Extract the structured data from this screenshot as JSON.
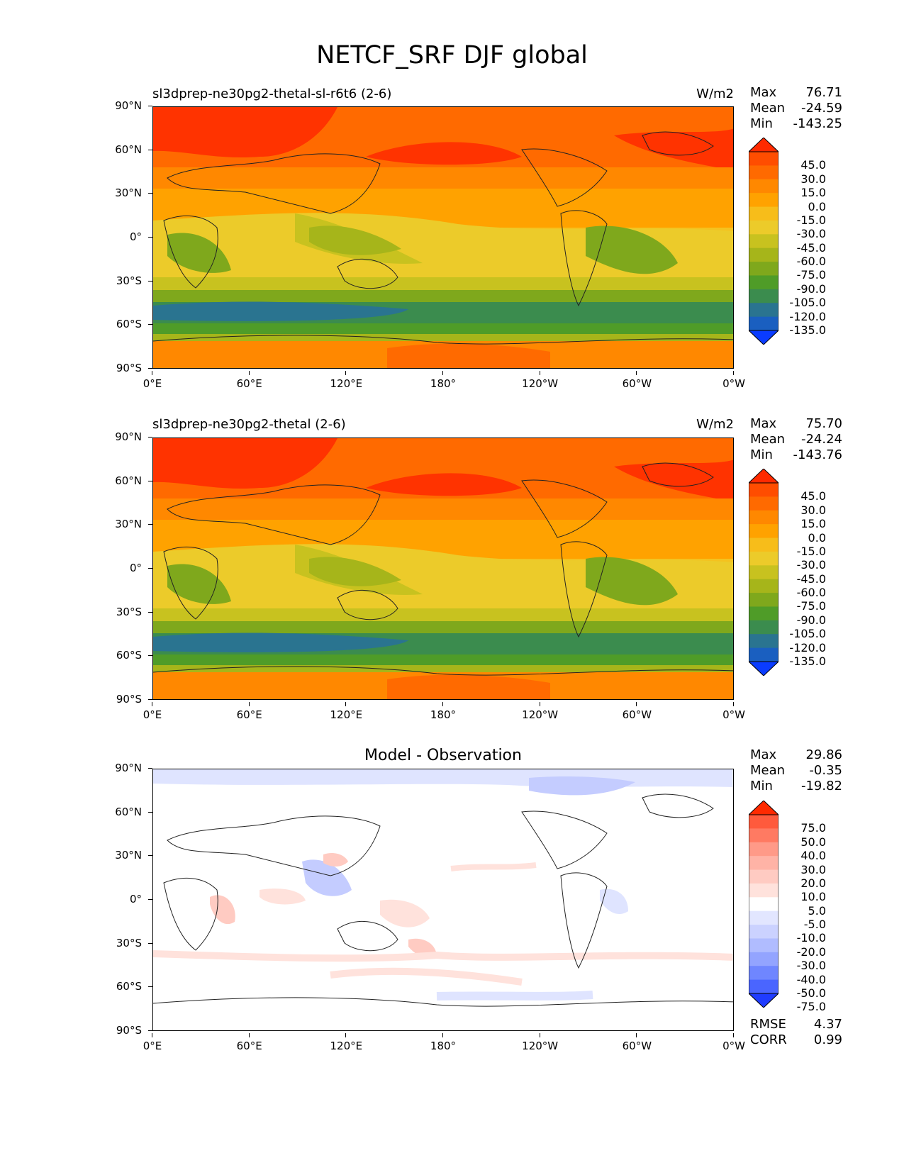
{
  "figure": {
    "title": "NETCF_SRF DJF global"
  },
  "axes": {
    "yticks": [
      "90°N",
      "60°N",
      "30°N",
      "0°",
      "30°S",
      "60°S",
      "90°S"
    ],
    "xticks": [
      "0°E",
      "60°E",
      "120°E",
      "180°",
      "120°W",
      "60°W",
      "0°W"
    ]
  },
  "panels": [
    {
      "title": "sl3dprep-ne30pg2-thetal-sl-r6t6 (2-6)",
      "units": "W/m2",
      "stats": {
        "max_label": "Max",
        "max": "76.71",
        "mean_label": "Mean",
        "mean": "-24.59",
        "min_label": "Min",
        "min": "-143.25"
      }
    },
    {
      "title": "sl3dprep-ne30pg2-thetal (2-6)",
      "units": "W/m2",
      "stats": {
        "max_label": "Max",
        "max": "75.70",
        "mean_label": "Mean",
        "mean": "-24.24",
        "min_label": "Min",
        "min": "-143.76"
      }
    },
    {
      "title": "Model - Observation",
      "units": "",
      "stats": {
        "max_label": "Max",
        "max": "29.86",
        "mean_label": "Mean",
        "mean": "-0.35",
        "min_label": "Min",
        "min": "-19.82"
      },
      "metrics": {
        "rmse_label": "RMSE",
        "rmse": "4.37",
        "corr_label": "CORR",
        "corr": "0.99"
      }
    }
  ],
  "colorbars": {
    "field": {
      "labels": [
        "45.0",
        "30.0",
        "15.0",
        "0.0",
        "-15.0",
        "-30.0",
        "-45.0",
        "-60.0",
        "-75.0",
        "-90.0",
        "-105.0",
        "-120.0",
        "-135.0"
      ],
      "colors": [
        "#ff2a00",
        "#ff4d00",
        "#ff6a00",
        "#ff8800",
        "#ffa200",
        "#f7bd1a",
        "#eccb2a",
        "#c8c21f",
        "#a6b51a",
        "#7fa81c",
        "#4f9c28",
        "#3b8c4e",
        "#2a7490",
        "#1a5fc0",
        "#0a3cff"
      ]
    },
    "diff": {
      "labels": [
        "75.0",
        "50.0",
        "40.0",
        "30.0",
        "20.0",
        "10.0",
        "5.0",
        "-5.0",
        "-10.0",
        "-20.0",
        "-30.0",
        "-40.0",
        "-50.0",
        "-75.0"
      ],
      "colors": [
        "#ff2a00",
        "#ff5a3c",
        "#ff7a62",
        "#ff9a88",
        "#ffb3a6",
        "#ffcbc2",
        "#ffe2dc",
        "#ffffff",
        "#e2e6ff",
        "#cbd2ff",
        "#b0bcff",
        "#93a4ff",
        "#6f86ff",
        "#4a65ff",
        "#1f3cff"
      ]
    }
  }
}
